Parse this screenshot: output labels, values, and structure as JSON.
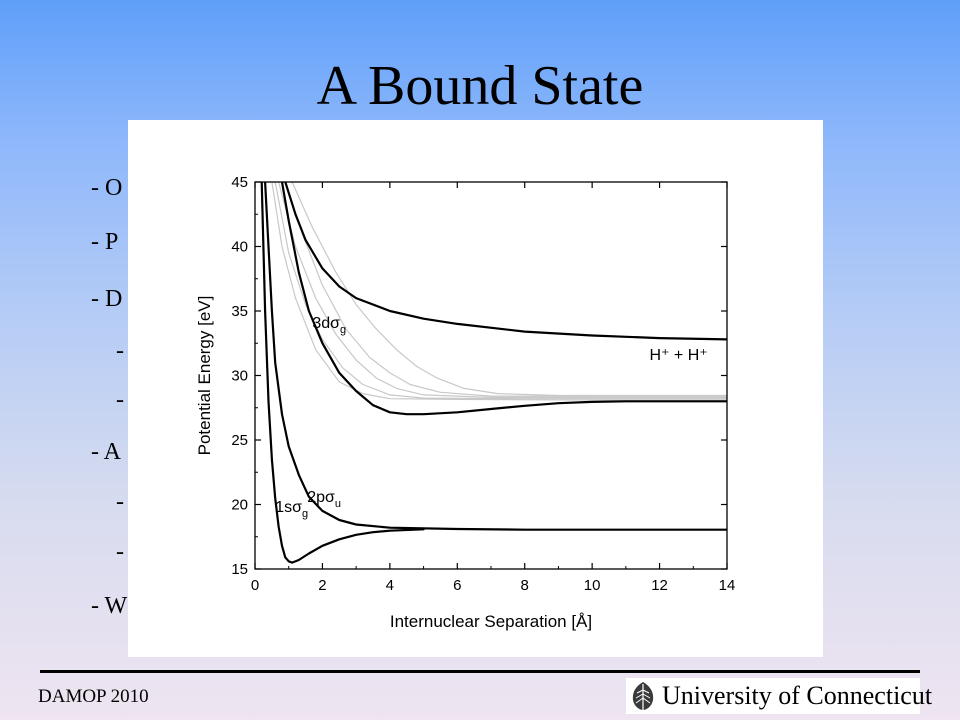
{
  "slide": {
    "title": "A Bound State",
    "bullets": [
      "- O",
      "- P",
      "- D",
      "-",
      "-",
      "- A",
      "-",
      "-",
      "- W"
    ],
    "footer": "DAMOP 2010",
    "logo_text": "University of Connecticut"
  },
  "chart_data": {
    "type": "line",
    "xlabel": "Internuclear Separation [Å]",
    "ylabel": "Potential Energy [eV]",
    "xlim": [
      0,
      14
    ],
    "ylim": [
      15,
      45
    ],
    "x_ticks": [
      0,
      2,
      4,
      6,
      8,
      10,
      12,
      14
    ],
    "y_ticks": [
      15,
      20,
      25,
      30,
      35,
      40,
      45
    ],
    "grid": false,
    "series": [
      {
        "name": "1sσg",
        "color": "#000000",
        "points": [
          [
            0.2,
            45
          ],
          [
            0.3,
            35
          ],
          [
            0.4,
            28
          ],
          [
            0.5,
            23.5
          ],
          [
            0.6,
            20.5
          ],
          [
            0.7,
            18.3
          ],
          [
            0.8,
            16.8
          ],
          [
            0.9,
            15.9
          ],
          [
            1.0,
            15.6
          ],
          [
            1.1,
            15.5
          ],
          [
            1.3,
            15.7
          ],
          [
            1.6,
            16.2
          ],
          [
            2.0,
            16.8
          ],
          [
            2.5,
            17.3
          ],
          [
            3.0,
            17.65
          ],
          [
            3.5,
            17.85
          ],
          [
            4.0,
            17.97
          ],
          [
            5.0,
            18.08
          ]
        ]
      },
      {
        "name": "2pσu",
        "color": "#000000",
        "points": [
          [
            0.3,
            45
          ],
          [
            0.4,
            40
          ],
          [
            0.5,
            35
          ],
          [
            0.6,
            31
          ],
          [
            0.8,
            27
          ],
          [
            1.0,
            24.5
          ],
          [
            1.3,
            22.3
          ],
          [
            1.6,
            20.6
          ],
          [
            2.0,
            19.5
          ],
          [
            2.5,
            18.8
          ],
          [
            3.0,
            18.45
          ],
          [
            4.0,
            18.2
          ],
          [
            6.0,
            18.1
          ],
          [
            8.0,
            18.05
          ],
          [
            10,
            18.05
          ],
          [
            14,
            18.05
          ]
        ]
      },
      {
        "name": "3dσg",
        "color": "#000000",
        "points": [
          [
            0.8,
            45
          ],
          [
            1.0,
            42
          ],
          [
            1.3,
            38
          ],
          [
            1.6,
            35
          ],
          [
            2.0,
            32.5
          ],
          [
            2.5,
            30.2
          ],
          [
            3.0,
            28.8
          ],
          [
            3.5,
            27.7
          ],
          [
            4.0,
            27.15
          ],
          [
            4.5,
            27.0
          ],
          [
            5.0,
            27.0
          ],
          [
            6.0,
            27.15
          ],
          [
            7.0,
            27.4
          ],
          [
            8.0,
            27.65
          ],
          [
            9.0,
            27.85
          ],
          [
            10,
            27.95
          ],
          [
            11,
            28.0
          ],
          [
            14,
            28.0
          ]
        ]
      },
      {
        "name": "H⁺ + H⁺",
        "color": "#000000",
        "points": [
          [
            0.9,
            45
          ],
          [
            1.2,
            42.5
          ],
          [
            1.5,
            40.5
          ],
          [
            2.0,
            38.3
          ],
          [
            2.5,
            36.9
          ],
          [
            3.0,
            36.0
          ],
          [
            4.0,
            35.0
          ],
          [
            5.0,
            34.4
          ],
          [
            6.0,
            34.0
          ],
          [
            8.0,
            33.4
          ],
          [
            10,
            33.1
          ],
          [
            12,
            32.9
          ],
          [
            14,
            32.8
          ]
        ]
      },
      {
        "name": "",
        "color": "#c8c8c8",
        "points": [
          [
            0.5,
            45
          ],
          [
            0.8,
            40
          ],
          [
            1.2,
            36
          ],
          [
            1.8,
            32
          ],
          [
            2.5,
            29.5
          ],
          [
            3.2,
            28.6
          ],
          [
            4.0,
            28.2
          ],
          [
            6.0,
            28.15
          ],
          [
            10,
            28.1
          ],
          [
            14,
            28.1
          ]
        ]
      },
      {
        "name": "",
        "color": "#c8c8c8",
        "points": [
          [
            0.6,
            45
          ],
          [
            1.0,
            39.5
          ],
          [
            1.5,
            35.5
          ],
          [
            2.0,
            32.8
          ],
          [
            2.6,
            30.6
          ],
          [
            3.2,
            29.3
          ],
          [
            4.0,
            28.5
          ],
          [
            5.0,
            28.25
          ],
          [
            8.0,
            28.2
          ],
          [
            14,
            28.2
          ]
        ]
      },
      {
        "name": "",
        "color": "#c8c8c8",
        "points": [
          [
            0.7,
            45
          ],
          [
            1.2,
            40
          ],
          [
            1.8,
            36
          ],
          [
            2.4,
            33.2
          ],
          [
            3.0,
            31.2
          ],
          [
            3.6,
            29.8
          ],
          [
            4.2,
            29.0
          ],
          [
            5.0,
            28.5
          ],
          [
            7.0,
            28.3
          ],
          [
            14,
            28.3
          ]
        ]
      },
      {
        "name": "",
        "color": "#c8c8c8",
        "points": [
          [
            0.9,
            45
          ],
          [
            1.4,
            41
          ],
          [
            2.0,
            37
          ],
          [
            2.7,
            33.6
          ],
          [
            3.4,
            31.4
          ],
          [
            4.0,
            30.2
          ],
          [
            4.6,
            29.3
          ],
          [
            5.5,
            28.7
          ],
          [
            7.0,
            28.4
          ],
          [
            14,
            28.4
          ]
        ]
      },
      {
        "name": "",
        "color": "#c8c8c8",
        "points": [
          [
            1.1,
            45
          ],
          [
            1.7,
            41.5
          ],
          [
            2.4,
            38
          ],
          [
            3.0,
            35.5
          ],
          [
            3.6,
            33.6
          ],
          [
            4.2,
            32.0
          ],
          [
            4.8,
            30.7
          ],
          [
            5.4,
            29.8
          ],
          [
            6.2,
            29.0
          ],
          [
            7.2,
            28.6
          ],
          [
            9.0,
            28.45
          ],
          [
            14,
            28.45
          ]
        ]
      }
    ],
    "annotations": [
      {
        "text": "3dσg",
        "x": 1.7,
        "y": 33.7
      },
      {
        "text": "2pσu",
        "x": 1.55,
        "y": 20.2
      },
      {
        "text": "1sσg",
        "x": 0.6,
        "y": 19.4
      },
      {
        "text": "H⁺ + H⁺",
        "x": 11.7,
        "y": 31.2
      }
    ]
  }
}
